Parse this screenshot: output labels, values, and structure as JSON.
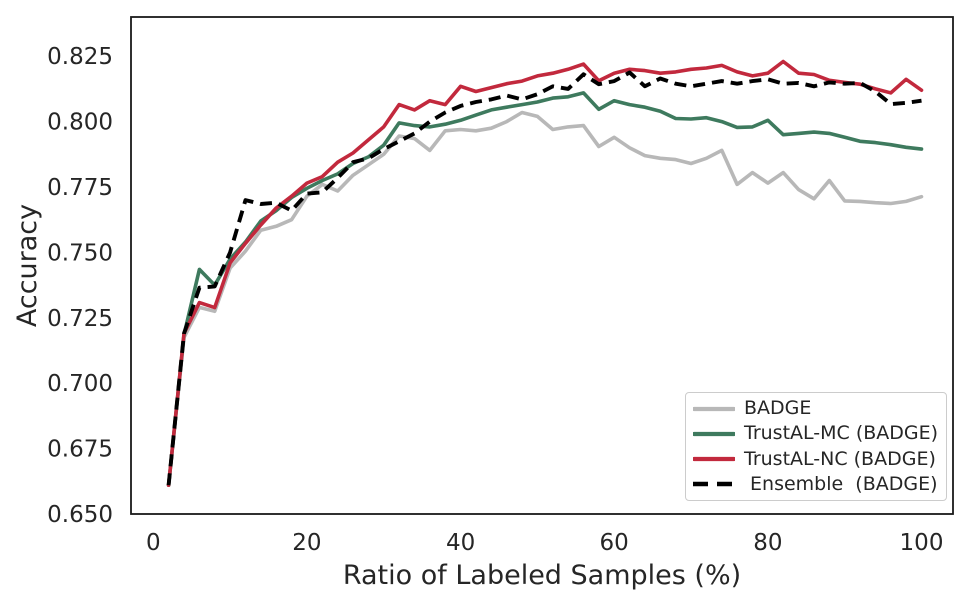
{
  "figure": {
    "background": "#ffffff",
    "text_color": "#262626",
    "spine_color": "#1a1a1a"
  },
  "chart_data": {
    "type": "line",
    "title": "",
    "xlabel": "Ratio of Labeled Samples (%)",
    "ylabel": "Accuracy",
    "xlim": [
      -2.9,
      104.1
    ],
    "ylim": [
      0.65,
      0.84
    ],
    "xticks": [
      0,
      20,
      40,
      60,
      80,
      100
    ],
    "xtick_labels": [
      "0",
      "20",
      "40",
      "60",
      "80",
      "100"
    ],
    "yticks": [
      0.65,
      0.675,
      0.7,
      0.725,
      0.75,
      0.775,
      0.8,
      0.825
    ],
    "ytick_labels": [
      "0.650",
      "0.675",
      "0.700",
      "0.725",
      "0.750",
      "0.775",
      "0.800",
      "0.825"
    ],
    "grid": false,
    "legend_position": "lower right",
    "x": [
      2,
      4,
      6,
      8,
      10,
      12,
      14,
      16,
      18,
      20,
      22,
      24,
      26,
      28,
      30,
      32,
      34,
      36,
      38,
      40,
      42,
      44,
      46,
      48,
      50,
      52,
      54,
      56,
      58,
      60,
      62,
      64,
      66,
      68,
      70,
      72,
      74,
      76,
      78,
      80,
      82,
      84,
      86,
      88,
      90,
      92,
      94,
      96,
      98,
      100
    ],
    "series": [
      {
        "name": "BADGE",
        "color": "#b8b8b8",
        "style": "solid",
        "values": [
          0.661,
          0.7175,
          0.729,
          0.7275,
          0.744,
          0.7505,
          0.7585,
          0.76,
          0.7625,
          0.7715,
          0.776,
          0.7735,
          0.7795,
          0.7835,
          0.7875,
          0.7945,
          0.7935,
          0.789,
          0.7965,
          0.797,
          0.7965,
          0.7975,
          0.8,
          0.8035,
          0.802,
          0.797,
          0.798,
          0.7985,
          0.7905,
          0.794,
          0.79,
          0.787,
          0.786,
          0.7855,
          0.784,
          0.786,
          0.789,
          0.776,
          0.7805,
          0.7765,
          0.7805,
          0.774,
          0.7705,
          0.7775,
          0.7697,
          0.7695,
          0.769,
          0.7687,
          0.7695,
          0.7713
        ]
      },
      {
        "name": "TrustAL-MC (BADGE)",
        "color": "#3e7a5e",
        "style": "solid",
        "values": [
          0.661,
          0.7185,
          0.7435,
          0.7375,
          0.7475,
          0.754,
          0.762,
          0.766,
          0.771,
          0.7745,
          0.7775,
          0.78,
          0.784,
          0.7865,
          0.791,
          0.7995,
          0.7985,
          0.798,
          0.799,
          0.8005,
          0.8025,
          0.8045,
          0.8055,
          0.8065,
          0.8075,
          0.809,
          0.8095,
          0.811,
          0.8047,
          0.808,
          0.8065,
          0.8055,
          0.804,
          0.8012,
          0.801,
          0.8015,
          0.8,
          0.7978,
          0.798,
          0.8005,
          0.795,
          0.7955,
          0.796,
          0.7955,
          0.794,
          0.7925,
          0.792,
          0.7912,
          0.7902,
          0.7895
        ]
      },
      {
        "name": "TrustAL-NC (BADGE)",
        "color": "#c2293d",
        "style": "solid",
        "values": [
          0.661,
          0.719,
          0.7308,
          0.7289,
          0.746,
          0.7535,
          0.7605,
          0.767,
          0.7715,
          0.7765,
          0.779,
          0.7845,
          0.788,
          0.793,
          0.798,
          0.8065,
          0.8045,
          0.808,
          0.8065,
          0.8135,
          0.8115,
          0.813,
          0.8145,
          0.8155,
          0.8175,
          0.8185,
          0.82,
          0.822,
          0.8156,
          0.8185,
          0.82,
          0.8195,
          0.8185,
          0.819,
          0.82,
          0.8205,
          0.8215,
          0.819,
          0.8175,
          0.8185,
          0.823,
          0.8185,
          0.818,
          0.8158,
          0.815,
          0.8143,
          0.8125,
          0.811,
          0.8162,
          0.812
        ]
      },
      {
        "name": " Ensemble  (BADGE)",
        "color": "#000000",
        "style": "dashed",
        "values": [
          0.661,
          0.719,
          0.7365,
          0.737,
          0.75,
          0.77,
          0.7685,
          0.769,
          0.766,
          0.7725,
          0.773,
          0.7785,
          0.7845,
          0.786,
          0.7895,
          0.7925,
          0.7955,
          0.8,
          0.8035,
          0.806,
          0.8075,
          0.8085,
          0.81,
          0.8085,
          0.8105,
          0.8135,
          0.8125,
          0.8181,
          0.8143,
          0.8155,
          0.8188,
          0.8135,
          0.8165,
          0.8145,
          0.8135,
          0.8145,
          0.8155,
          0.8145,
          0.8155,
          0.8162,
          0.8145,
          0.8148,
          0.8135,
          0.815,
          0.8145,
          0.8148,
          0.8115,
          0.8067,
          0.8072,
          0.808
        ]
      }
    ]
  }
}
